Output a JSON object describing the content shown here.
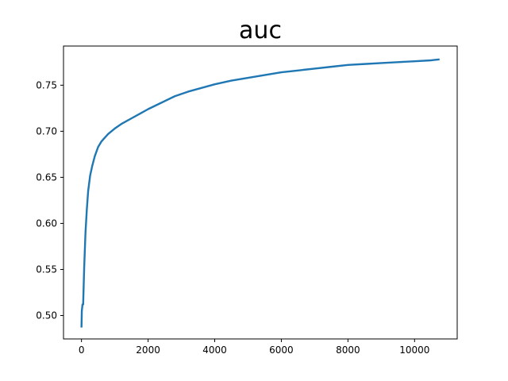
{
  "chart_data": {
    "type": "line",
    "title": "auc",
    "xlabel": "",
    "ylabel": "",
    "xlim": [
      -540,
      11280
    ],
    "ylim": [
      0.4746,
      0.7925
    ],
    "grid": false,
    "x_ticks": [
      0,
      2000,
      4000,
      6000,
      8000,
      10000
    ],
    "x_tick_labels": [
      "0",
      "2000",
      "4000",
      "6000",
      "8000",
      "10000"
    ],
    "y_ticks": [
      0.5,
      0.55,
      0.6,
      0.65,
      0.7,
      0.75
    ],
    "y_tick_labels": [
      "0.50",
      "0.55",
      "0.60",
      "0.65",
      "0.70",
      "0.75"
    ],
    "series": [
      {
        "color": "#1f77b4",
        "x": [
          0,
          10,
          30,
          50,
          80,
          120,
          160,
          200,
          260,
          320,
          400,
          500,
          600,
          700,
          800,
          1000,
          1200,
          1500,
          1800,
          2000,
          2400,
          2800,
          3200,
          3600,
          4000,
          4500,
          5000,
          5500,
          6000,
          6500,
          7000,
          7500,
          8000,
          8500,
          9000,
          9500,
          10000,
          10500,
          10750
        ],
        "values": [
          0.487,
          0.505,
          0.512,
          0.512,
          0.551,
          0.59,
          0.615,
          0.635,
          0.652,
          0.662,
          0.673,
          0.683,
          0.689,
          0.693,
          0.697,
          0.703,
          0.708,
          0.714,
          0.72,
          0.724,
          0.731,
          0.738,
          0.743,
          0.747,
          0.751,
          0.755,
          0.758,
          0.761,
          0.764,
          0.766,
          0.768,
          0.77,
          0.772,
          0.773,
          0.774,
          0.775,
          0.776,
          0.777,
          0.778
        ]
      }
    ]
  }
}
